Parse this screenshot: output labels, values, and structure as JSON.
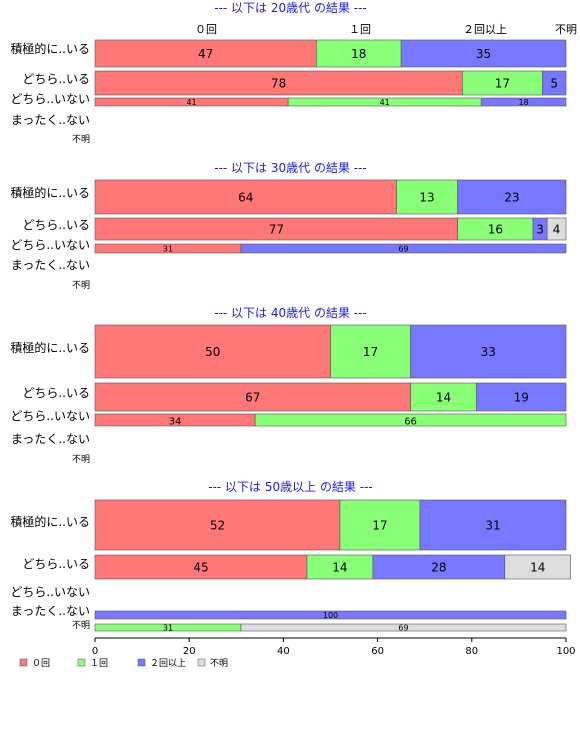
{
  "chart_data": {
    "type": "bar",
    "orientation": "horizontal-stacked-100",
    "series_names": [
      "０回",
      "１回",
      "２回以上",
      "不明"
    ],
    "colors": [
      "#ff7777",
      "#88ff77",
      "#7777ff",
      "#dddddd"
    ],
    "category_labels": [
      "積極的に..いる",
      "どちら..いる",
      "どちら..いない",
      "まったく..ない",
      "不明"
    ],
    "xlim": [
      0,
      100
    ],
    "x_ticks": [
      0,
      20,
      40,
      60,
      80,
      100
    ],
    "panels": [
      {
        "title": "--- 以下は 20歳代 の結果 ---",
        "header": [
          "０回",
          "１回",
          "２回以上",
          "不明"
        ],
        "rows": [
          {
            "label": "積極的に..いる",
            "values": [
              47,
              18,
              35,
              0
            ]
          },
          {
            "label": "どちら..いる",
            "values": [
              78,
              17,
              5,
              0
            ]
          },
          {
            "label": "どちら..いない",
            "values": [
              41,
              41,
              18,
              0
            ]
          },
          {
            "label": "まったく..ない",
            "values": []
          },
          {
            "label": "不明",
            "values": []
          }
        ]
      },
      {
        "title": "--- 以下は 30歳代 の結果 ---",
        "rows": [
          {
            "label": "積極的に..いる",
            "values": [
              64,
              13,
              23,
              0
            ]
          },
          {
            "label": "どちら..いる",
            "values": [
              77,
              16,
              3,
              4
            ]
          },
          {
            "label": "どちら..いない",
            "values": [
              31,
              0,
              69,
              0
            ]
          },
          {
            "label": "まったく..ない",
            "values": []
          },
          {
            "label": "不明",
            "values": []
          }
        ]
      },
      {
        "title": "--- 以下は 40歳代 の結果 ---",
        "rows": [
          {
            "label": "積極的に..いる",
            "values": [
              50,
              17,
              33,
              0
            ]
          },
          {
            "label": "どちら..いる",
            "values": [
              67,
              14,
              19,
              0
            ]
          },
          {
            "label": "どちら..いない",
            "values": [
              34,
              66,
              0,
              0
            ]
          },
          {
            "label": "まったく..ない",
            "values": []
          },
          {
            "label": "不明",
            "values": []
          }
        ]
      },
      {
        "title": "--- 以下は 50歳以上 の結果 ---",
        "rows": [
          {
            "label": "積極的に..いる",
            "values": [
              52,
              17,
              31,
              0
            ]
          },
          {
            "label": "どちら..いる",
            "values": [
              45,
              14,
              28,
              14
            ]
          },
          {
            "label": "どちら..いない",
            "values": []
          },
          {
            "label": "まったく..ない",
            "values": [
              0,
              0,
              100,
              0
            ]
          },
          {
            "label": "不明",
            "values": [
              0,
              31,
              0,
              69
            ]
          }
        ]
      }
    ]
  }
}
